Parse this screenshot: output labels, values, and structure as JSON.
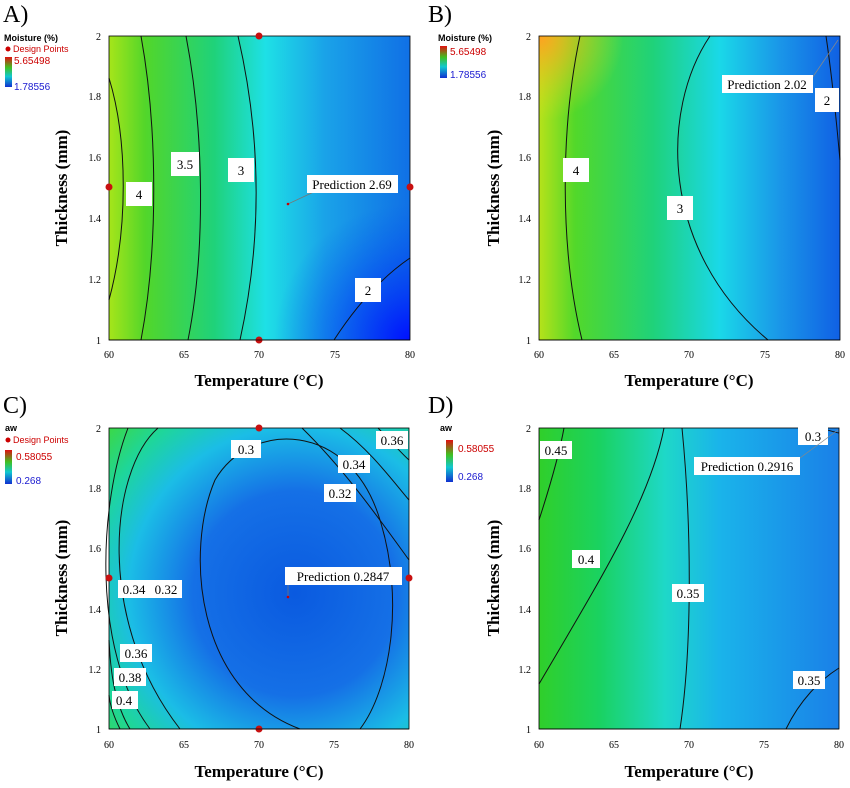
{
  "chart_data": [
    {
      "type": "heatmap",
      "panel": "A)",
      "xlabel": "Temperature (°C)",
      "ylabel": "Thickness (mm)",
      "xlim": [
        60,
        80
      ],
      "ylim": [
        1,
        2
      ],
      "x_ticks": [
        "60",
        "65",
        "70",
        "75",
        "80"
      ],
      "y_ticks": [
        "1",
        "1.2",
        "1.4",
        "1.6",
        "1.8",
        "2"
      ],
      "legend": {
        "title": "Moisture (%)",
        "design_points_label": "Design Points",
        "max": "5.65498",
        "min": "1.78556"
      },
      "contour_labels": [
        "4",
        "3.5",
        "3",
        "2"
      ],
      "prediction": {
        "label": "Prediction 2.69",
        "x": 72,
        "y": 1.45
      },
      "design_points": [
        [
          70,
          2
        ],
        [
          60,
          1.5
        ],
        [
          80,
          1.5
        ],
        [
          70,
          1
        ]
      ]
    },
    {
      "type": "heatmap",
      "panel": "B)",
      "xlabel": "Temperature (°C)",
      "ylabel": "Thickness (mm)",
      "xlim": [
        60,
        80
      ],
      "ylim": [
        1,
        2
      ],
      "x_ticks": [
        "60",
        "65",
        "70",
        "75",
        "80"
      ],
      "y_ticks": [
        "1",
        "1.2",
        "1.4",
        "1.6",
        "1.8",
        "2"
      ],
      "legend": {
        "title": "Moisture (%)",
        "max": "5.65498",
        "min": "1.78556"
      },
      "contour_labels": [
        "4",
        "3",
        "2"
      ],
      "prediction": {
        "label": "Prediction 2.02",
        "x": 80,
        "y": 2
      },
      "design_points": []
    },
    {
      "type": "heatmap",
      "panel": "C)",
      "xlabel": "Temperature (°C)",
      "ylabel": "Thickness (mm)",
      "xlim": [
        60,
        80
      ],
      "ylim": [
        1,
        2
      ],
      "x_ticks": [
        "60",
        "65",
        "70",
        "75",
        "80"
      ],
      "y_ticks": [
        "1",
        "1.2",
        "1.4",
        "1.6",
        "1.8",
        "2"
      ],
      "legend": {
        "title": "aw",
        "design_points_label": "Design Points",
        "max": "0.58055",
        "min": "0.268"
      },
      "contour_labels": [
        "0.3",
        "0.36",
        "0.34",
        "0.32",
        "0.34",
        "0.32",
        "0.36",
        "0.38",
        "0.4"
      ],
      "prediction": {
        "label": "Prediction 0.2847",
        "x": 72,
        "y": 1.45
      },
      "design_points": [
        [
          70,
          2
        ],
        [
          60,
          1.5
        ],
        [
          80,
          1.5
        ],
        [
          70,
          1
        ]
      ]
    },
    {
      "type": "heatmap",
      "panel": "D)",
      "xlabel": "Temperature (°C)",
      "ylabel": "Thickness (mm)",
      "xlim": [
        60,
        80
      ],
      "ylim": [
        1,
        2
      ],
      "x_ticks": [
        "60",
        "65",
        "70",
        "75",
        "80"
      ],
      "y_ticks": [
        "1",
        "1.2",
        "1.4",
        "1.6",
        "1.8",
        "2"
      ],
      "legend": {
        "title": "aw",
        "max": "0.58055",
        "min": "0.268"
      },
      "contour_labels": [
        "0.45",
        "0.4",
        "0.35",
        "0.35",
        "0.3"
      ],
      "prediction": {
        "label": "Prediction 0.2916",
        "x": 80,
        "y": 2
      },
      "design_points": []
    }
  ]
}
